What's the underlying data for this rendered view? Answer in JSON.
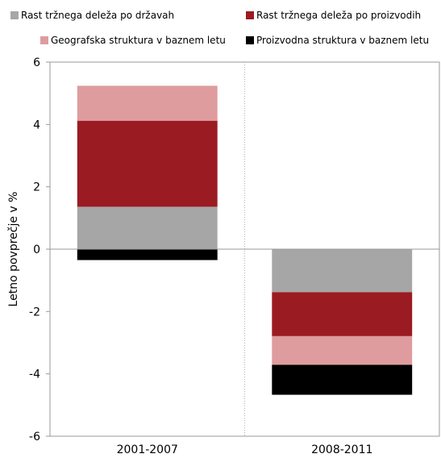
{
  "chart_data": {
    "type": "bar",
    "stacked": true,
    "categories": [
      "2001-2007",
      "2008-2011"
    ],
    "ylabel": "Letno povprečje v %",
    "xlabel": "",
    "ylim": [
      -6,
      6
    ],
    "yticks": [
      6,
      4,
      2,
      0,
      -2,
      -4,
      -6
    ],
    "grid": false,
    "legend_position": "top",
    "series": [
      {
        "name": "Rast tržnega deleža po državah",
        "color": "#a6a6a6",
        "values": [
          1.36,
          -1.38
        ]
      },
      {
        "name": "Rast tržnega deleža po proizvodih",
        "color": "#9b1b22",
        "values": [
          2.76,
          -1.41
        ]
      },
      {
        "name": "Geografska struktura v baznem letu",
        "color": "#de9c9e",
        "values": [
          1.12,
          -0.92
        ]
      },
      {
        "name": "Proizvodna struktura v baznem letu",
        "color": "#000000",
        "values": [
          -0.35,
          -0.96
        ]
      }
    ]
  }
}
